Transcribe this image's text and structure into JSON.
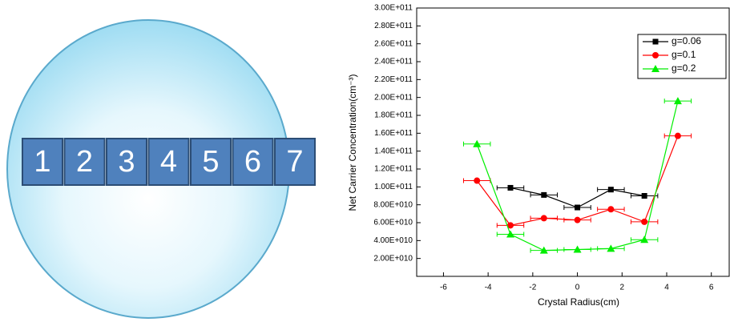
{
  "diagram": {
    "labels": [
      "1",
      "2",
      "3",
      "4",
      "5",
      "6",
      "7"
    ]
  },
  "chart_data": {
    "type": "line",
    "x_label": "Crystal Radius(cm)",
    "y_label": "Net Carrier Concentration(cm⁻³)",
    "x": [
      -4.5,
      -3,
      -1.5,
      0,
      1.5,
      3,
      4.5
    ],
    "series": [
      {
        "name": "g=0.06",
        "color": "#000000",
        "marker": "square",
        "values": [
          null,
          99000000000,
          91000000000,
          77000000000,
          97000000000,
          90000000000,
          null
        ],
        "xerr": [
          null,
          0.6,
          0.6,
          0.6,
          0.6,
          0.6,
          null
        ]
      },
      {
        "name": "g=0.1",
        "color": "#ff0000",
        "marker": "circle",
        "values": [
          107000000000,
          57000000000,
          65000000000,
          63000000000,
          75000000000,
          61000000000,
          157000000000
        ],
        "xerr": [
          0.6,
          0.6,
          0.6,
          0.6,
          0.6,
          0.6,
          0.6
        ]
      },
      {
        "name": "g=0.2",
        "color": "#00ee00",
        "marker": "triangle",
        "values": [
          148000000000,
          47000000000,
          29000000000,
          30000000000,
          31000000000,
          41000000000,
          196000000000
        ],
        "xerr": [
          0.6,
          0.6,
          0.6,
          0.6,
          0.6,
          0.6,
          0.6
        ]
      }
    ],
    "xlim": [
      -7.2,
      6.8
    ],
    "xticks": [
      -6,
      -4,
      -2,
      0,
      2,
      4,
      6
    ],
    "ylim": [
      0,
      300000000000
    ],
    "yticks": [
      {
        "value": 20000000000,
        "label": "2.00E+010"
      },
      {
        "value": 40000000000,
        "label": "4.00E+010"
      },
      {
        "value": 60000000000,
        "label": "6.00E+010"
      },
      {
        "value": 80000000000,
        "label": "8.00E+010"
      },
      {
        "value": 100000000000,
        "label": "1.00E+011"
      },
      {
        "value": 120000000000,
        "label": "1.20E+011"
      },
      {
        "value": 140000000000,
        "label": "1.40E+011"
      },
      {
        "value": 160000000000,
        "label": "1.60E+011"
      },
      {
        "value": 180000000000,
        "label": "1.80E+011"
      },
      {
        "value": 200000000000,
        "label": "2.00E+011"
      },
      {
        "value": 220000000000,
        "label": "2.20E+011"
      },
      {
        "value": 240000000000,
        "label": "2.40E+011"
      },
      {
        "value": 260000000000,
        "label": "2.60E+011"
      },
      {
        "value": 280000000000,
        "label": "2.80E+011"
      },
      {
        "value": 300000000000,
        "label": "3.00E+011"
      }
    ],
    "grid": false,
    "legend": "upper right"
  }
}
